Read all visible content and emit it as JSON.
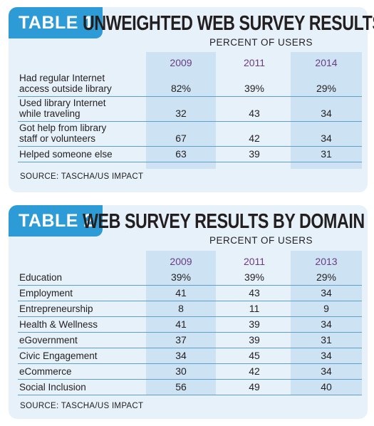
{
  "table1": {
    "badge": "TABLE 1",
    "title": "UNWEIGHTED WEB SURVEY RESULTS",
    "subheader": "PERCENT OF USERS",
    "years": [
      "2009",
      "2011",
      "2014"
    ],
    "rows": [
      {
        "label": "Had regular Internet\naccess outside library",
        "values": [
          "82%",
          "39%",
          "29%"
        ]
      },
      {
        "label": "Used library Internet\nwhile traveling",
        "values": [
          "32",
          "43",
          "34"
        ]
      },
      {
        "label": "Got help from library\nstaff or volunteers",
        "values": [
          "67",
          "42",
          "34"
        ]
      },
      {
        "label": "Helped someone else",
        "values": [
          "63",
          "39",
          "31"
        ]
      }
    ],
    "source": "SOURCE: TASCHA/US IMPACT"
  },
  "table2": {
    "badge": "TABLE 2",
    "title": "WEB SURVEY RESULTS BY DOMAIN",
    "subheader": "PERCENT OF USERS",
    "years": [
      "2009",
      "2011",
      "2013"
    ],
    "rows": [
      {
        "label": "Education",
        "values": [
          "39%",
          "39%",
          "29%"
        ]
      },
      {
        "label": "Employment",
        "values": [
          "41",
          "43",
          "34"
        ]
      },
      {
        "label": "Entrepreneurship",
        "values": [
          "8",
          "11",
          "9"
        ]
      },
      {
        "label": "Health & Wellness",
        "values": [
          "41",
          "39",
          "34"
        ]
      },
      {
        "label": "eGovernment",
        "values": [
          "37",
          "39",
          "31"
        ]
      },
      {
        "label": "Civic Engagement",
        "values": [
          "34",
          "45",
          "34"
        ]
      },
      {
        "label": "eCommerce",
        "values": [
          "30",
          "42",
          "34"
        ]
      },
      {
        "label": "Social Inclusion",
        "values": [
          "56",
          "49",
          "40"
        ]
      }
    ],
    "source": "SOURCE: TASCHA/US IMPACT"
  }
}
